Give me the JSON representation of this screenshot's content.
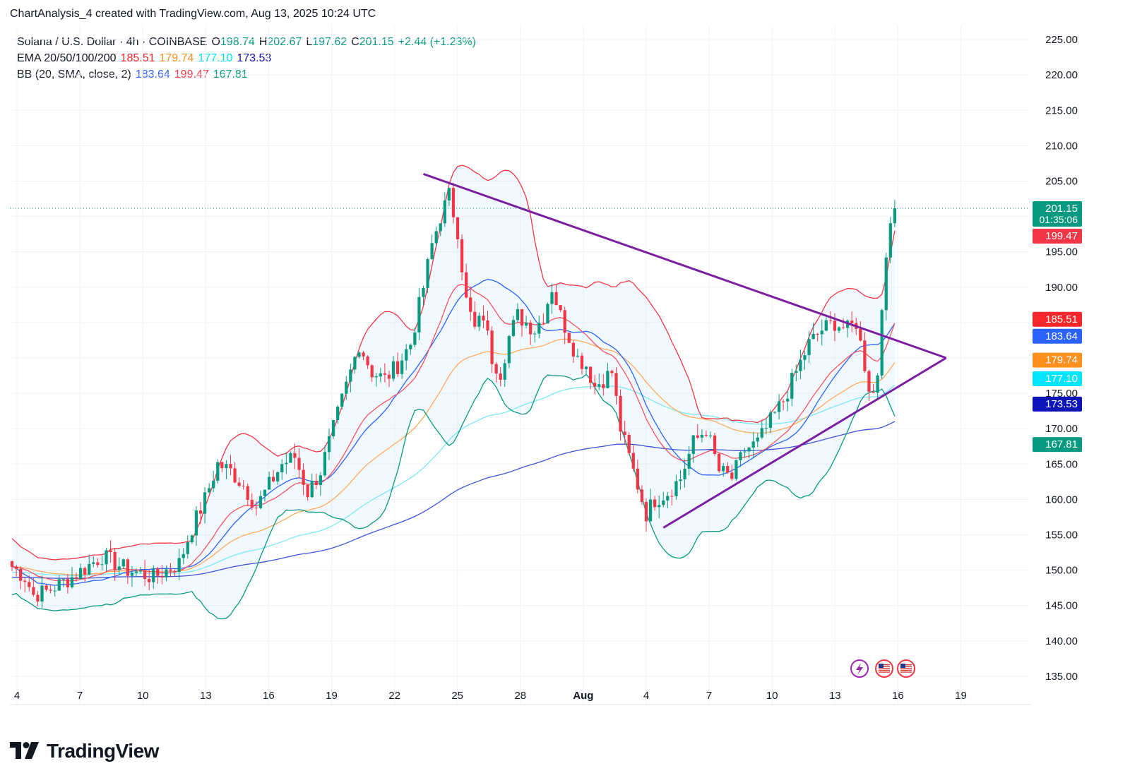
{
  "header": {
    "text": "ChartAnalysis_4 created with TradingView.com, Aug 13, 2025 10:24 UTC"
  },
  "legend": {
    "symbol": "Solana / U.S. Dollar · 4h · COINBASE",
    "ohlc": {
      "o_label": "O",
      "o": "198.74",
      "h_label": "H",
      "h": "202.67",
      "l_label": "L",
      "l": "197.62",
      "c_label": "C",
      "c": "201.15",
      "change": "+2.44 (+1.23%)"
    },
    "ema": {
      "label": "EMA 20/50/100/200",
      "v20": "185.51",
      "v50": "179.74",
      "v100": "177.10",
      "v200": "173.53"
    },
    "bb": {
      "label": "BB (20, SMA, close, 2)",
      "basis": "183.64",
      "upper": "199.47",
      "lower": "167.81"
    }
  },
  "footer": {
    "brand": "TradingView"
  },
  "chart_data": {
    "type": "candlestick",
    "symbol": "Solana / U.S. Dollar",
    "interval": "4h",
    "exchange": "COINBASE",
    "ylim": [
      131,
      227
    ],
    "y_ticks": [
      "225.00",
      "220.00",
      "215.00",
      "210.00",
      "205.00",
      "200.00",
      "195.00",
      "190.00",
      "185.00",
      "180.00",
      "175.00",
      "170.00",
      "165.00",
      "160.00",
      "155.00",
      "150.00",
      "145.00",
      "140.00",
      "135.00"
    ],
    "x_ticks": [
      "4",
      "7",
      "10",
      "13",
      "16",
      "19",
      "22",
      "25",
      "28",
      "Aug",
      "4",
      "7",
      "10",
      "13",
      "16",
      "19"
    ],
    "last_price": 201.15,
    "countdown": "01:35:06",
    "price_tags": [
      {
        "value": 201.15,
        "label": "201.15",
        "color": "#089981"
      },
      {
        "value": 199.47,
        "label": "199.47",
        "color": "#f23645"
      },
      {
        "value": 185.51,
        "label": "185.51",
        "color": "#f7262b"
      },
      {
        "value": 183.64,
        "label": "183.64",
        "color": "#2962ff"
      },
      {
        "value": 179.74,
        "label": "179.74",
        "color": "#ff8f1f"
      },
      {
        "value": 177.1,
        "label": "177.10",
        "color": "#00e5ff"
      },
      {
        "value": 173.53,
        "label": "173.53",
        "color": "#0d14b8"
      },
      {
        "value": 167.81,
        "label": "167.81",
        "color": "#089981"
      }
    ],
    "series": [
      {
        "name": "Close",
        "anchors": [
          [
            0,
            150.5
          ],
          [
            3,
            149
          ],
          [
            5,
            146.5
          ],
          [
            8,
            147
          ],
          [
            14,
            149
          ],
          [
            21,
            152
          ],
          [
            27,
            150
          ],
          [
            33,
            149
          ],
          [
            39,
            151
          ],
          [
            42,
            156
          ],
          [
            45,
            160
          ],
          [
            48,
            165
          ],
          [
            51,
            164
          ],
          [
            54,
            162
          ],
          [
            57,
            159
          ],
          [
            60,
            162
          ],
          [
            63,
            165
          ],
          [
            66,
            166
          ],
          [
            69,
            161
          ],
          [
            72,
            164
          ],
          [
            75,
            170
          ],
          [
            78,
            176
          ],
          [
            81,
            182
          ],
          [
            84,
            178
          ],
          [
            87,
            177
          ],
          [
            90,
            179
          ],
          [
            93,
            182
          ],
          [
            96,
            190
          ],
          [
            98,
            196
          ],
          [
            100,
            200
          ],
          [
            102,
            203
          ],
          [
            104,
            198
          ],
          [
            106,
            188
          ],
          [
            108,
            184
          ],
          [
            110,
            186
          ],
          [
            112,
            180
          ],
          [
            114,
            178
          ],
          [
            116,
            183
          ],
          [
            118,
            186
          ],
          [
            120,
            185
          ],
          [
            122,
            184
          ],
          [
            124,
            186
          ],
          [
            126,
            190
          ],
          [
            128,
            186
          ],
          [
            130,
            183
          ],
          [
            132,
            180
          ],
          [
            134,
            179
          ],
          [
            136,
            176
          ],
          [
            138,
            177
          ],
          [
            140,
            178
          ],
          [
            142,
            170
          ],
          [
            144,
            166
          ],
          [
            146,
            162
          ],
          [
            148,
            158
          ],
          [
            150,
            160
          ],
          [
            153,
            161
          ],
          [
            156,
            163
          ],
          [
            159,
            168
          ],
          [
            162,
            170
          ],
          [
            165,
            164
          ],
          [
            168,
            163
          ],
          [
            171,
            167
          ],
          [
            174,
            168
          ],
          [
            177,
            171
          ],
          [
            180,
            174
          ],
          [
            183,
            178
          ],
          [
            186,
            182
          ],
          [
            189,
            184
          ],
          [
            192,
            185
          ],
          [
            195,
            184
          ],
          [
            197,
            185
          ],
          [
            199,
            179
          ],
          [
            200,
            176
          ],
          [
            201,
            175
          ],
          [
            202,
            178
          ],
          [
            203,
            188
          ],
          [
            204,
            193
          ],
          [
            205,
            199
          ],
          [
            206,
            201.15
          ]
        ]
      },
      {
        "name": "EMA 20",
        "color": "#f7262b"
      },
      {
        "name": "EMA 50",
        "color": "#ff8f1f"
      },
      {
        "name": "EMA 100",
        "color": "#00e5ff"
      },
      {
        "name": "EMA 200",
        "color": "#0d14b8"
      },
      {
        "name": "BB basis",
        "color": "#2962ff"
      },
      {
        "name": "BB upper",
        "color": "#f23645"
      },
      {
        "name": "BB lower",
        "color": "#089981"
      }
    ],
    "trendlines": [
      {
        "name": "upper",
        "from": [
          96,
          206
        ],
        "to": [
          218,
          180
        ],
        "color": "#7b1fa2"
      },
      {
        "name": "lower",
        "from": [
          152,
          156
        ],
        "to": [
          218,
          180
        ],
        "color": "#7b1fa2"
      }
    ],
    "events": [
      "flash-icon",
      "us-flag-icon",
      "us-flag-icon"
    ]
  }
}
